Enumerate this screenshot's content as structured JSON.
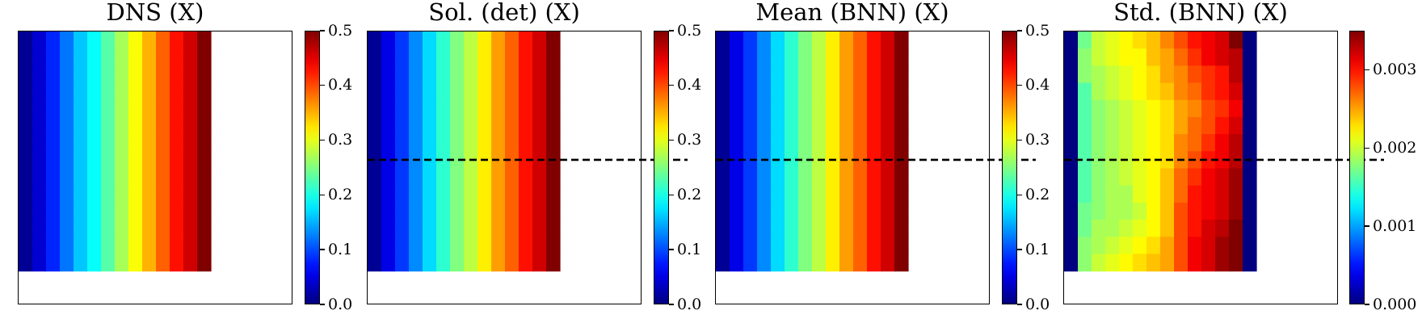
{
  "chart_data": [
    {
      "type": "heatmap",
      "title": "DNS (X)",
      "xlabel": "",
      "ylabel": "",
      "colormap": "jet",
      "grid": false,
      "nx": 14,
      "ny": 14,
      "domain_cols": 20,
      "domain_rows": 16,
      "dashed_line": false,
      "colorbar": {
        "min": 0.0,
        "max": 0.5,
        "ticks": [
          0.0,
          0.1,
          0.2,
          0.3,
          0.4,
          0.5
        ],
        "tick_labels": [
          "0.0",
          "0.1",
          "0.2",
          "0.3",
          "0.4",
          "0.5"
        ]
      },
      "values": [
        [
          0.01,
          0.04,
          0.08,
          0.12,
          0.16,
          0.19,
          0.23,
          0.27,
          0.31,
          0.35,
          0.39,
          0.43,
          0.46,
          0.5
        ],
        [
          0.01,
          0.04,
          0.08,
          0.12,
          0.16,
          0.19,
          0.23,
          0.27,
          0.31,
          0.35,
          0.39,
          0.43,
          0.46,
          0.5
        ],
        [
          0.01,
          0.04,
          0.08,
          0.12,
          0.16,
          0.19,
          0.23,
          0.27,
          0.31,
          0.35,
          0.39,
          0.43,
          0.46,
          0.5
        ],
        [
          0.01,
          0.04,
          0.08,
          0.12,
          0.16,
          0.19,
          0.23,
          0.27,
          0.31,
          0.35,
          0.39,
          0.43,
          0.46,
          0.5
        ],
        [
          0.01,
          0.04,
          0.08,
          0.12,
          0.16,
          0.19,
          0.23,
          0.27,
          0.31,
          0.35,
          0.39,
          0.43,
          0.46,
          0.5
        ],
        [
          0.01,
          0.04,
          0.08,
          0.12,
          0.16,
          0.19,
          0.23,
          0.27,
          0.31,
          0.35,
          0.39,
          0.43,
          0.46,
          0.5
        ],
        [
          0.01,
          0.04,
          0.08,
          0.12,
          0.16,
          0.19,
          0.23,
          0.27,
          0.31,
          0.35,
          0.39,
          0.43,
          0.46,
          0.5
        ],
        [
          0.01,
          0.04,
          0.08,
          0.12,
          0.16,
          0.19,
          0.23,
          0.27,
          0.31,
          0.35,
          0.39,
          0.43,
          0.46,
          0.5
        ],
        [
          0.01,
          0.04,
          0.08,
          0.12,
          0.16,
          0.19,
          0.23,
          0.27,
          0.31,
          0.35,
          0.39,
          0.43,
          0.46,
          0.5
        ],
        [
          0.01,
          0.04,
          0.08,
          0.12,
          0.16,
          0.19,
          0.23,
          0.27,
          0.31,
          0.35,
          0.39,
          0.43,
          0.46,
          0.5
        ],
        [
          0.01,
          0.04,
          0.08,
          0.12,
          0.16,
          0.19,
          0.23,
          0.27,
          0.31,
          0.35,
          0.39,
          0.43,
          0.46,
          0.5
        ],
        [
          0.01,
          0.04,
          0.08,
          0.12,
          0.16,
          0.19,
          0.23,
          0.27,
          0.31,
          0.35,
          0.39,
          0.43,
          0.46,
          0.5
        ],
        [
          0.01,
          0.04,
          0.08,
          0.12,
          0.16,
          0.19,
          0.23,
          0.27,
          0.31,
          0.35,
          0.39,
          0.43,
          0.46,
          0.5
        ],
        [
          0.01,
          0.04,
          0.08,
          0.12,
          0.16,
          0.19,
          0.23,
          0.27,
          0.31,
          0.35,
          0.39,
          0.43,
          0.46,
          0.5
        ]
      ]
    },
    {
      "type": "heatmap",
      "title": "Sol. (det) (X)",
      "xlabel": "",
      "ylabel": "",
      "colormap": "jet",
      "grid": false,
      "nx": 14,
      "ny": 14,
      "domain_cols": 20,
      "domain_rows": 16,
      "dashed_line": true,
      "dashed_line_row": 7.5,
      "colorbar": {
        "min": 0.0,
        "max": 0.5,
        "ticks": [
          0.0,
          0.1,
          0.2,
          0.3,
          0.4,
          0.5
        ],
        "tick_labels": [
          "0.0",
          "0.1",
          "0.2",
          "0.3",
          "0.4",
          "0.5"
        ]
      },
      "values": [
        [
          0.01,
          0.05,
          0.09,
          0.13,
          0.17,
          0.21,
          0.25,
          0.28,
          0.32,
          0.36,
          0.39,
          0.43,
          0.46,
          0.5
        ],
        [
          0.01,
          0.05,
          0.09,
          0.13,
          0.17,
          0.21,
          0.25,
          0.28,
          0.32,
          0.36,
          0.39,
          0.43,
          0.46,
          0.5
        ],
        [
          0.01,
          0.05,
          0.09,
          0.13,
          0.17,
          0.21,
          0.25,
          0.28,
          0.32,
          0.36,
          0.39,
          0.43,
          0.46,
          0.5
        ],
        [
          0.01,
          0.05,
          0.09,
          0.13,
          0.17,
          0.21,
          0.25,
          0.28,
          0.32,
          0.36,
          0.39,
          0.43,
          0.46,
          0.5
        ],
        [
          0.01,
          0.05,
          0.09,
          0.13,
          0.17,
          0.21,
          0.25,
          0.28,
          0.32,
          0.36,
          0.39,
          0.43,
          0.46,
          0.5
        ],
        [
          0.01,
          0.05,
          0.09,
          0.13,
          0.17,
          0.21,
          0.25,
          0.28,
          0.32,
          0.36,
          0.39,
          0.43,
          0.46,
          0.5
        ],
        [
          0.01,
          0.05,
          0.09,
          0.13,
          0.17,
          0.21,
          0.25,
          0.28,
          0.32,
          0.36,
          0.39,
          0.43,
          0.46,
          0.5
        ],
        [
          0.01,
          0.05,
          0.09,
          0.13,
          0.17,
          0.21,
          0.25,
          0.28,
          0.32,
          0.36,
          0.39,
          0.43,
          0.46,
          0.5
        ],
        [
          0.01,
          0.05,
          0.09,
          0.13,
          0.17,
          0.21,
          0.25,
          0.28,
          0.32,
          0.36,
          0.39,
          0.43,
          0.46,
          0.5
        ],
        [
          0.01,
          0.05,
          0.09,
          0.13,
          0.17,
          0.21,
          0.25,
          0.28,
          0.32,
          0.36,
          0.39,
          0.43,
          0.46,
          0.5
        ],
        [
          0.01,
          0.05,
          0.09,
          0.13,
          0.17,
          0.21,
          0.25,
          0.28,
          0.32,
          0.36,
          0.39,
          0.43,
          0.46,
          0.5
        ],
        [
          0.01,
          0.05,
          0.09,
          0.13,
          0.17,
          0.21,
          0.25,
          0.28,
          0.32,
          0.36,
          0.39,
          0.43,
          0.46,
          0.5
        ],
        [
          0.01,
          0.05,
          0.09,
          0.13,
          0.17,
          0.21,
          0.25,
          0.28,
          0.32,
          0.36,
          0.39,
          0.43,
          0.46,
          0.5
        ],
        [
          0.01,
          0.05,
          0.09,
          0.13,
          0.17,
          0.21,
          0.25,
          0.28,
          0.32,
          0.36,
          0.39,
          0.43,
          0.46,
          0.5
        ]
      ]
    },
    {
      "type": "heatmap",
      "title": "Mean (BNN) (X)",
      "xlabel": "",
      "ylabel": "",
      "colormap": "jet",
      "grid": false,
      "nx": 14,
      "ny": 14,
      "domain_cols": 20,
      "domain_rows": 16,
      "dashed_line": true,
      "dashed_line_row": 7.5,
      "colorbar": {
        "min": 0.0,
        "max": 0.5,
        "ticks": [
          0.0,
          0.1,
          0.2,
          0.3,
          0.4,
          0.5
        ],
        "tick_labels": [
          "0.0",
          "0.1",
          "0.2",
          "0.3",
          "0.4",
          "0.5"
        ]
      },
      "values": [
        [
          0.01,
          0.05,
          0.09,
          0.13,
          0.17,
          0.21,
          0.25,
          0.28,
          0.32,
          0.36,
          0.39,
          0.43,
          0.46,
          0.5
        ],
        [
          0.01,
          0.05,
          0.09,
          0.13,
          0.17,
          0.21,
          0.25,
          0.28,
          0.32,
          0.36,
          0.39,
          0.43,
          0.46,
          0.5
        ],
        [
          0.01,
          0.05,
          0.09,
          0.13,
          0.17,
          0.21,
          0.25,
          0.28,
          0.32,
          0.36,
          0.39,
          0.43,
          0.46,
          0.5
        ],
        [
          0.01,
          0.05,
          0.09,
          0.13,
          0.17,
          0.21,
          0.25,
          0.28,
          0.32,
          0.36,
          0.39,
          0.43,
          0.46,
          0.5
        ],
        [
          0.01,
          0.05,
          0.09,
          0.13,
          0.17,
          0.21,
          0.25,
          0.28,
          0.32,
          0.36,
          0.39,
          0.43,
          0.46,
          0.5
        ],
        [
          0.01,
          0.05,
          0.09,
          0.13,
          0.17,
          0.21,
          0.25,
          0.28,
          0.32,
          0.36,
          0.39,
          0.43,
          0.46,
          0.5
        ],
        [
          0.01,
          0.05,
          0.09,
          0.13,
          0.17,
          0.21,
          0.25,
          0.28,
          0.32,
          0.36,
          0.39,
          0.43,
          0.46,
          0.5
        ],
        [
          0.01,
          0.05,
          0.09,
          0.13,
          0.17,
          0.21,
          0.25,
          0.28,
          0.32,
          0.36,
          0.39,
          0.43,
          0.46,
          0.5
        ],
        [
          0.01,
          0.05,
          0.09,
          0.13,
          0.17,
          0.21,
          0.25,
          0.28,
          0.32,
          0.36,
          0.39,
          0.43,
          0.46,
          0.5
        ],
        [
          0.01,
          0.05,
          0.09,
          0.13,
          0.17,
          0.21,
          0.25,
          0.28,
          0.32,
          0.36,
          0.39,
          0.43,
          0.46,
          0.5
        ],
        [
          0.01,
          0.05,
          0.09,
          0.13,
          0.17,
          0.21,
          0.25,
          0.28,
          0.32,
          0.36,
          0.39,
          0.43,
          0.46,
          0.5
        ],
        [
          0.01,
          0.05,
          0.09,
          0.13,
          0.17,
          0.21,
          0.25,
          0.28,
          0.32,
          0.36,
          0.39,
          0.43,
          0.46,
          0.5
        ],
        [
          0.01,
          0.05,
          0.09,
          0.13,
          0.17,
          0.21,
          0.25,
          0.28,
          0.32,
          0.36,
          0.39,
          0.43,
          0.46,
          0.5
        ],
        [
          0.01,
          0.05,
          0.09,
          0.13,
          0.17,
          0.21,
          0.25,
          0.28,
          0.32,
          0.36,
          0.39,
          0.43,
          0.46,
          0.5
        ]
      ]
    },
    {
      "type": "heatmap",
      "title": "Std. (BNN) (X)",
      "xlabel": "",
      "ylabel": "",
      "colormap": "jet",
      "grid": false,
      "nx": 14,
      "ny": 14,
      "domain_cols": 20,
      "domain_rows": 16,
      "dashed_line": true,
      "dashed_line_row": 7.5,
      "colorbar": {
        "min": 0.0,
        "max": 0.0035,
        "ticks": [
          0.0,
          0.001,
          0.002,
          0.003
        ],
        "tick_labels": [
          "0.000",
          "0.001",
          "0.002",
          "0.003"
        ]
      },
      "values": [
        [
          0.0,
          0.0017,
          0.002,
          0.0021,
          0.0022,
          0.0023,
          0.0024,
          0.0026,
          0.0028,
          0.003,
          0.0031,
          0.0032,
          0.0035,
          0.0
        ],
        [
          0.0,
          0.0018,
          0.002,
          0.0021,
          0.0022,
          0.0022,
          0.0024,
          0.0025,
          0.0027,
          0.0029,
          0.0031,
          0.0032,
          0.0033,
          0.0
        ],
        [
          0.0,
          0.0018,
          0.0019,
          0.002,
          0.0021,
          0.0022,
          0.0023,
          0.0025,
          0.0026,
          0.0028,
          0.0029,
          0.003,
          0.0033,
          0.0
        ],
        [
          0.0,
          0.0016,
          0.0019,
          0.002,
          0.0021,
          0.0022,
          0.0023,
          0.0024,
          0.0026,
          0.0027,
          0.0029,
          0.003,
          0.0032,
          0.0
        ],
        [
          0.0,
          0.0016,
          0.0018,
          0.0019,
          0.002,
          0.0021,
          0.0022,
          0.0023,
          0.0025,
          0.0026,
          0.0028,
          0.0029,
          0.0031,
          0.0
        ],
        [
          0.0,
          0.0016,
          0.0018,
          0.0019,
          0.002,
          0.0021,
          0.0022,
          0.0023,
          0.0025,
          0.0027,
          0.0028,
          0.003,
          0.0032,
          0.0
        ],
        [
          0.0,
          0.0016,
          0.0018,
          0.0019,
          0.002,
          0.0021,
          0.0022,
          0.0023,
          0.0026,
          0.0027,
          0.0029,
          0.0031,
          0.0033,
          0.0
        ],
        [
          0.0,
          0.0016,
          0.0018,
          0.0019,
          0.002,
          0.0021,
          0.0022,
          0.0023,
          0.0026,
          0.0028,
          0.003,
          0.0031,
          0.0033,
          0.0
        ],
        [
          0.0,
          0.0016,
          0.0018,
          0.0019,
          0.002,
          0.0021,
          0.0022,
          0.0024,
          0.0027,
          0.0029,
          0.0031,
          0.0032,
          0.0034,
          0.0
        ],
        [
          0.0,
          0.0016,
          0.0018,
          0.0019,
          0.0019,
          0.0021,
          0.0022,
          0.0024,
          0.0027,
          0.003,
          0.0031,
          0.0032,
          0.0034,
          0.0
        ],
        [
          0.0,
          0.0017,
          0.0018,
          0.0019,
          0.0019,
          0.002,
          0.0022,
          0.0024,
          0.0028,
          0.003,
          0.0031,
          0.0032,
          0.0034,
          0.0
        ],
        [
          0.0,
          0.0017,
          0.0019,
          0.0019,
          0.002,
          0.0021,
          0.0022,
          0.0024,
          0.0028,
          0.003,
          0.0032,
          0.0033,
          0.0035,
          0.0
        ],
        [
          0.0,
          0.0018,
          0.0019,
          0.002,
          0.0021,
          0.0022,
          0.0023,
          0.0025,
          0.0028,
          0.0031,
          0.0032,
          0.0034,
          0.0035,
          0.0
        ],
        [
          0.0,
          0.0018,
          0.002,
          0.0021,
          0.0022,
          0.0023,
          0.0024,
          0.0025,
          0.0028,
          0.0031,
          0.0032,
          0.0034,
          0.0035,
          0.0
        ]
      ]
    }
  ]
}
